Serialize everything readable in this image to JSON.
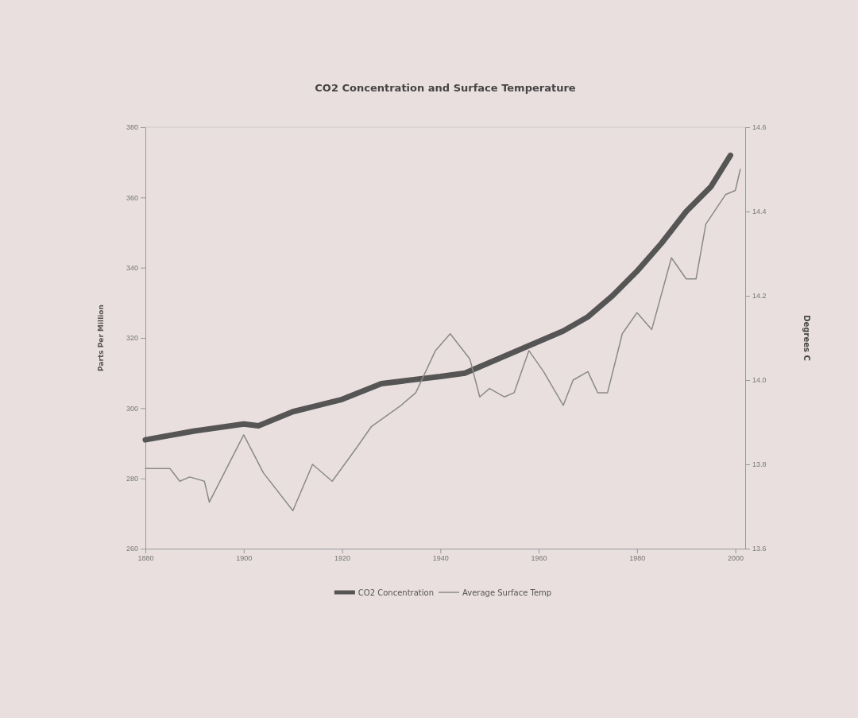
{
  "chart_data": {
    "type": "line",
    "title": "CO2 Concentration and Surface Temperature",
    "ylabel": "Parts Per Million",
    "y2label": "Degrees C",
    "xlim": [
      1880,
      2002
    ],
    "xticks": [
      1880,
      1900,
      1920,
      1940,
      1960,
      1980,
      2000
    ],
    "ylim": [
      260,
      380
    ],
    "yticks": [
      260,
      280,
      300,
      320,
      340,
      360,
      380
    ],
    "y2lim": [
      13.6,
      14.6
    ],
    "y2ticks": [
      {
        "value": 13.6,
        "label": "13.6"
      },
      {
        "value": 13.8,
        "label": "13.8"
      },
      {
        "value": 14.0,
        "label": "14.0"
      },
      {
        "value": 14.2,
        "label": "14.2"
      },
      {
        "value": 14.4,
        "label": "14.4"
      },
      {
        "value": 14.6,
        "label": "14.6"
      }
    ],
    "legend": "bottom",
    "grid": false,
    "series": [
      {
        "name": "CO2 Concentration",
        "color": "#555555",
        "x": [
          1880,
          1890,
          1900,
          1903,
          1910,
          1920,
          1928,
          1940,
          1945,
          1950,
          1960,
          1965,
          1970,
          1975,
          1980,
          1985,
          1990,
          1995,
          1999
        ],
        "values": [
          291,
          293.5,
          295.5,
          295,
          299,
          302.5,
          307,
          309,
          310,
          313,
          319,
          322,
          326,
          332,
          339,
          347,
          356,
          363,
          372
        ]
      },
      {
        "name": "Average Surface Temp",
        "color": "#8a8a8a",
        "axis": "y2",
        "x": [
          1880,
          1885,
          1887,
          1889,
          1892,
          1893,
          1900,
          1904,
          1910,
          1914,
          1918,
          1923,
          1926,
          1932,
          1935,
          1939,
          1942,
          1946,
          1948,
          1950,
          1953,
          1955,
          1958,
          1961,
          1965,
          1967,
          1970,
          1972,
          1974,
          1977,
          1980,
          1983,
          1987,
          1990,
          1992,
          1994,
          1998,
          2000,
          2001
        ],
        "values": [
          13.79,
          13.79,
          13.76,
          13.77,
          13.76,
          13.71,
          13.87,
          13.78,
          13.69,
          13.8,
          13.76,
          13.84,
          13.89,
          13.94,
          13.97,
          14.07,
          14.11,
          14.05,
          13.96,
          13.98,
          13.96,
          13.97,
          14.07,
          14.02,
          13.94,
          14.0,
          14.02,
          13.97,
          13.97,
          14.11,
          14.16,
          14.12,
          14.29,
          14.24,
          14.24,
          14.37,
          14.44,
          14.45,
          14.5
        ]
      }
    ]
  }
}
